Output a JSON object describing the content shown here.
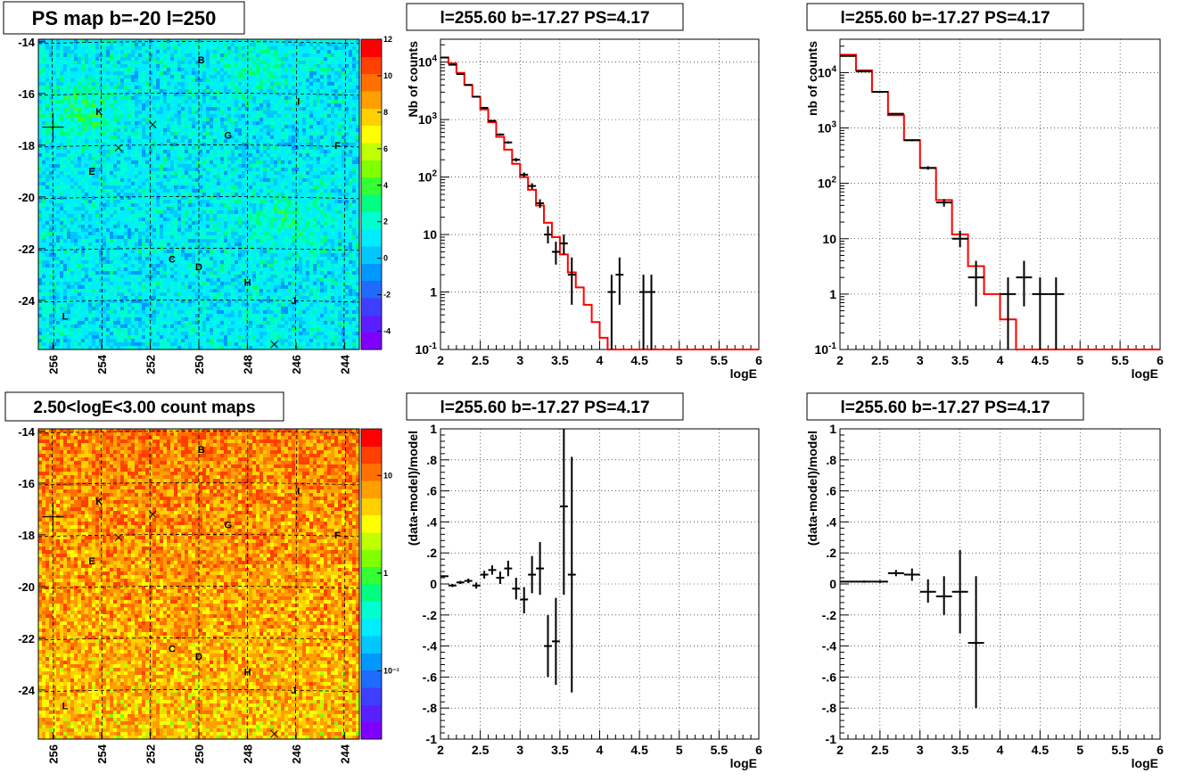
{
  "chart_data": [
    {
      "type": "heatmap",
      "title": "PS map b=-20 l=250",
      "xlim": [
        256.6,
        243.4
      ],
      "ylim": [
        -25.9,
        -13.9
      ],
      "x_ticks": [
        256,
        254,
        252,
        250,
        248,
        246,
        244
      ],
      "y_ticks": [
        -14,
        -16,
        -18,
        -20,
        -22,
        -24
      ],
      "grid": true,
      "colorbar": {
        "scale": "linear",
        "range": [
          -5,
          12
        ],
        "ticks": [
          -4,
          -2,
          0,
          2,
          4,
          6,
          8,
          10,
          12
        ]
      },
      "sources": [
        {
          "label": "B",
          "l": 249.9,
          "b": -14.7
        },
        {
          "label": "I",
          "l": 245.9,
          "b": -16.3
        },
        {
          "label": "K",
          "l": 254.1,
          "b": -16.7
        },
        {
          "label": "G",
          "l": 248.8,
          "b": -17.6
        },
        {
          "label": "F",
          "l": 244.3,
          "b": -18.0
        },
        {
          "label": "E",
          "l": 254.4,
          "b": -19.0
        },
        {
          "label": "C",
          "l": 251.1,
          "b": -22.4
        },
        {
          "label": "D",
          "l": 250.0,
          "b": -22.7
        },
        {
          "label": "H",
          "l": 248.0,
          "b": -23.3
        },
        {
          "label": "J",
          "l": 246.1,
          "b": -24.0
        },
        {
          "label": "L",
          "l": 255.5,
          "b": -24.6
        }
      ],
      "markers_x": [
        {
          "l": 251.9,
          "b": -17.2
        },
        {
          "l": 253.3,
          "b": -18.1
        },
        {
          "l": 246.9,
          "b": -25.7
        }
      ],
      "target": {
        "l": 256.0,
        "b": -17.3
      }
    },
    {
      "type": "line",
      "title": "l=255.60 b=-17.27 PS=4.17",
      "xlabel": "logE",
      "ylabel": "Nb of counts",
      "yscale": "log",
      "xlim": [
        2,
        6
      ],
      "ylim": [
        0.1,
        25000
      ],
      "x_ticks": [
        2,
        2.5,
        3,
        3.5,
        4,
        4.5,
        5,
        5.5,
        6
      ],
      "y_ticks": [
        "10^-1",
        "1",
        "10",
        "10^2",
        "10^3",
        "10^4"
      ],
      "grid": true,
      "model_step": {
        "edges": [
          2,
          2.1,
          2.2,
          2.3,
          2.4,
          2.5,
          2.6,
          2.7,
          2.8,
          2.9,
          3,
          3.1,
          3.2,
          3.3,
          3.4,
          3.5,
          3.6,
          3.7,
          3.8,
          3.9,
          4,
          4.1,
          4.2,
          6
        ],
        "values": [
          12000,
          9500,
          6500,
          4000,
          2500,
          1500,
          900,
          500,
          300,
          170,
          100,
          60,
          32,
          16,
          9,
          4.5,
          2.2,
          1.2,
          0.6,
          0.3,
          0.16,
          0.1,
          0.1
        ]
      },
      "data_points": [
        {
          "x": 2.05,
          "y": 12000,
          "xerr": 0.05,
          "ylo": 11890,
          "yhi": 12110
        },
        {
          "x": 2.15,
          "y": 9000,
          "xerr": 0.05,
          "ylo": 8905,
          "yhi": 9095
        },
        {
          "x": 2.25,
          "y": 6200,
          "xerr": 0.05,
          "ylo": 6121,
          "yhi": 6279
        },
        {
          "x": 2.35,
          "y": 4000,
          "xerr": 0.05,
          "ylo": 3937,
          "yhi": 4063
        },
        {
          "x": 2.45,
          "y": 2500,
          "xerr": 0.05,
          "ylo": 2450,
          "yhi": 2550
        },
        {
          "x": 2.55,
          "y": 1600,
          "xerr": 0.05,
          "ylo": 1560,
          "yhi": 1640
        },
        {
          "x": 2.65,
          "y": 950,
          "xerr": 0.05,
          "ylo": 919,
          "yhi": 981
        },
        {
          "x": 2.75,
          "y": 550,
          "xerr": 0.05,
          "ylo": 527,
          "yhi": 573
        },
        {
          "x": 2.85,
          "y": 400,
          "xerr": 0.05,
          "ylo": 380,
          "yhi": 420
        },
        {
          "x": 2.95,
          "y": 200,
          "xerr": 0.05,
          "ylo": 186,
          "yhi": 214
        },
        {
          "x": 3.05,
          "y": 110,
          "xerr": 0.05,
          "ylo": 100,
          "yhi": 120
        },
        {
          "x": 3.15,
          "y": 70,
          "xerr": 0.05,
          "ylo": 62,
          "yhi": 78
        },
        {
          "x": 3.25,
          "y": 35,
          "xerr": 0.05,
          "ylo": 29,
          "yhi": 41
        },
        {
          "x": 3.35,
          "y": 10,
          "xerr": 0.05,
          "ylo": 7,
          "yhi": 14
        },
        {
          "x": 3.45,
          "y": 5,
          "xerr": 0.05,
          "ylo": 3,
          "yhi": 7.5
        },
        {
          "x": 3.55,
          "y": 7,
          "xerr": 0.05,
          "ylo": 4.5,
          "yhi": 10
        },
        {
          "x": 3.65,
          "y": 2,
          "xerr": 0.05,
          "ylo": 0.6,
          "yhi": 4
        },
        {
          "x": 4.15,
          "y": 1,
          "xerr": 0.05,
          "ylo": 0.1,
          "yhi": 2
        },
        {
          "x": 4.25,
          "y": 2,
          "xerr": 0.05,
          "ylo": 0.6,
          "yhi": 4
        },
        {
          "x": 4.55,
          "y": 1,
          "xerr": 0.05,
          "ylo": 0.1,
          "yhi": 2
        },
        {
          "x": 4.65,
          "y": 1,
          "xerr": 0.05,
          "ylo": 0.1,
          "yhi": 2
        }
      ]
    },
    {
      "type": "line",
      "title": "l=255.60 b=-17.27 PS=4.17",
      "xlabel": "logE",
      "ylabel": "nb of counts",
      "yscale": "log",
      "xlim": [
        2,
        6
      ],
      "ylim": [
        0.1,
        40000
      ],
      "x_ticks": [
        2,
        2.5,
        3,
        3.5,
        4,
        4.5,
        5,
        5.5,
        6
      ],
      "y_ticks": [
        "10^-1",
        "1",
        "10",
        "10^2",
        "10^3",
        "10^4"
      ],
      "grid": true,
      "model_step": {
        "edges": [
          2,
          2.2,
          2.4,
          2.6,
          2.8,
          3,
          3.2,
          3.4,
          3.6,
          3.8,
          4,
          4.2,
          6
        ],
        "values": [
          21000,
          11000,
          4500,
          1700,
          600,
          190,
          50,
          12,
          3.2,
          1,
          0.35,
          0.1
        ]
      },
      "data_points": [
        {
          "x": 2.1,
          "y": 20000,
          "xerr": 0.1,
          "ylo": 19860,
          "yhi": 20140
        },
        {
          "x": 2.3,
          "y": 10500,
          "xerr": 0.1,
          "ylo": 10400,
          "yhi": 10600
        },
        {
          "x": 2.5,
          "y": 4500,
          "xerr": 0.1,
          "ylo": 4433,
          "yhi": 4567
        },
        {
          "x": 2.7,
          "y": 1800,
          "xerr": 0.1,
          "ylo": 1758,
          "yhi": 1842
        },
        {
          "x": 2.9,
          "y": 600,
          "xerr": 0.1,
          "ylo": 576,
          "yhi": 624
        },
        {
          "x": 3.1,
          "y": 190,
          "xerr": 0.1,
          "ylo": 176,
          "yhi": 204
        },
        {
          "x": 3.3,
          "y": 45,
          "xerr": 0.1,
          "ylo": 38,
          "yhi": 52
        },
        {
          "x": 3.5,
          "y": 10,
          "xerr": 0.1,
          "ylo": 7,
          "yhi": 14
        },
        {
          "x": 3.7,
          "y": 2,
          "xerr": 0.1,
          "ylo": 0.6,
          "yhi": 4
        },
        {
          "x": 4.1,
          "y": 1,
          "xerr": 0.1,
          "ylo": 0.1,
          "yhi": 2
        },
        {
          "x": 4.3,
          "y": 2,
          "xerr": 0.1,
          "ylo": 0.6,
          "yhi": 4
        },
        {
          "x": 4.5,
          "y": 1,
          "xerr": 0.1,
          "ylo": 0.1,
          "yhi": 2
        },
        {
          "x": 4.7,
          "y": 1,
          "xerr": 0.1,
          "ylo": 0.1,
          "yhi": 2
        }
      ]
    },
    {
      "type": "heatmap",
      "title": "2.50<logE<3.00 count maps",
      "xlim": [
        256.6,
        243.4
      ],
      "ylim": [
        -25.9,
        -13.9
      ],
      "x_ticks": [
        256,
        254,
        252,
        250,
        248,
        246,
        244
      ],
      "y_ticks": [
        -14,
        -16,
        -18,
        -20,
        -22,
        -24
      ],
      "grid": true,
      "colorbar": {
        "scale": "log",
        "range": [
          0.02,
          30
        ],
        "ticks": [
          {
            "value": 0.1,
            "label": "10⁻¹"
          },
          {
            "value": 1,
            "label": "1"
          },
          {
            "value": 10,
            "label": "10"
          }
        ]
      },
      "sources": [
        {
          "label": "B",
          "l": 249.9,
          "b": -14.7
        },
        {
          "label": "I",
          "l": 245.9,
          "b": -16.3
        },
        {
          "label": "K",
          "l": 254.1,
          "b": -16.7
        },
        {
          "label": "G",
          "l": 248.8,
          "b": -17.6
        },
        {
          "label": "F",
          "l": 244.3,
          "b": -18.0
        },
        {
          "label": "E",
          "l": 254.4,
          "b": -19.0
        },
        {
          "label": "C",
          "l": 251.1,
          "b": -22.4
        },
        {
          "label": "D",
          "l": 250.0,
          "b": -22.7
        },
        {
          "label": "H",
          "l": 248.0,
          "b": -23.3
        },
        {
          "label": "J",
          "l": 246.1,
          "b": -24.0
        },
        {
          "label": "L",
          "l": 255.5,
          "b": -24.6
        }
      ],
      "markers_x": [
        {
          "l": 251.9,
          "b": -17.2
        },
        {
          "l": 253.3,
          "b": -18.1
        },
        {
          "l": 246.9,
          "b": -25.7
        }
      ],
      "target": {
        "l": 256.0,
        "b": -17.3
      }
    },
    {
      "type": "scatter",
      "title": "l=255.60 b=-17.27 PS=4.17",
      "xlabel": "logE",
      "ylabel": "(data-model)/model",
      "xlim": [
        2,
        6
      ],
      "ylim": [
        -1,
        1
      ],
      "x_ticks": [
        2,
        2.5,
        3,
        3.5,
        4,
        4.5,
        5,
        5.5,
        6
      ],
      "y_ticks": [
        -1,
        -0.8,
        -0.6,
        -0.4,
        -0.2,
        0,
        0.2,
        0.4,
        0.6,
        0.8,
        1
      ],
      "grid": true,
      "data_points": [
        {
          "x": 2.05,
          "y": 0.05,
          "xerr": 0.05,
          "ylo": 0.045,
          "yhi": 0.055
        },
        {
          "x": 2.15,
          "y": -0.01,
          "xerr": 0.05,
          "ylo": -0.02,
          "yhi": 0.0
        },
        {
          "x": 2.25,
          "y": 0.01,
          "xerr": 0.05,
          "ylo": 0.0,
          "yhi": 0.02
        },
        {
          "x": 2.35,
          "y": 0.02,
          "xerr": 0.05,
          "ylo": 0.005,
          "yhi": 0.035
        },
        {
          "x": 2.45,
          "y": -0.01,
          "xerr": 0.05,
          "ylo": -0.03,
          "yhi": 0.01
        },
        {
          "x": 2.55,
          "y": 0.06,
          "xerr": 0.05,
          "ylo": 0.035,
          "yhi": 0.085
        },
        {
          "x": 2.65,
          "y": 0.09,
          "xerr": 0.05,
          "ylo": 0.06,
          "yhi": 0.12
        },
        {
          "x": 2.75,
          "y": 0.04,
          "xerr": 0.05,
          "ylo": 0.0,
          "yhi": 0.08
        },
        {
          "x": 2.85,
          "y": 0.1,
          "xerr": 0.05,
          "ylo": 0.05,
          "yhi": 0.15
        },
        {
          "x": 2.95,
          "y": -0.03,
          "xerr": 0.05,
          "ylo": -0.1,
          "yhi": 0.04
        },
        {
          "x": 3.05,
          "y": -0.1,
          "xerr": 0.05,
          "ylo": -0.19,
          "yhi": -0.02
        },
        {
          "x": 3.15,
          "y": 0.06,
          "xerr": 0.05,
          "ylo": -0.06,
          "yhi": 0.18
        },
        {
          "x": 3.25,
          "y": 0.1,
          "xerr": 0.05,
          "ylo": -0.07,
          "yhi": 0.27
        },
        {
          "x": 3.35,
          "y": -0.4,
          "xerr": 0.05,
          "ylo": -0.6,
          "yhi": -0.2
        },
        {
          "x": 3.45,
          "y": -0.37,
          "xerr": 0.05,
          "ylo": -0.65,
          "yhi": -0.09
        },
        {
          "x": 3.55,
          "y": 0.5,
          "xerr": 0.05,
          "ylo": -0.07,
          "yhi": 1.0
        },
        {
          "x": 3.65,
          "y": 0.06,
          "xerr": 0.05,
          "ylo": -0.7,
          "yhi": 0.82
        }
      ]
    },
    {
      "type": "scatter",
      "title": "l=255.60 b=-17.27 PS=4.17",
      "xlabel": "logE",
      "ylabel": "(data-model)/model",
      "xlim": [
        2,
        6
      ],
      "ylim": [
        -1,
        1
      ],
      "x_ticks": [
        2,
        2.5,
        3,
        3.5,
        4,
        4.5,
        5,
        5.5,
        6
      ],
      "y_ticks": [
        -1,
        -0.8,
        -0.6,
        -0.4,
        -0.2,
        0,
        0.2,
        0.4,
        0.6,
        0.8,
        1
      ],
      "grid": true,
      "data_points": [
        {
          "x": 2.1,
          "y": 0.015,
          "xerr": 0.1,
          "ylo": 0.01,
          "yhi": 0.02
        },
        {
          "x": 2.3,
          "y": 0.015,
          "xerr": 0.1,
          "ylo": 0.008,
          "yhi": 0.022
        },
        {
          "x": 2.5,
          "y": 0.015,
          "xerr": 0.1,
          "ylo": 0.005,
          "yhi": 0.025
        },
        {
          "x": 2.7,
          "y": 0.07,
          "xerr": 0.1,
          "ylo": 0.05,
          "yhi": 0.09
        },
        {
          "x": 2.9,
          "y": 0.06,
          "xerr": 0.1,
          "ylo": 0.02,
          "yhi": 0.1
        },
        {
          "x": 3.1,
          "y": -0.05,
          "xerr": 0.1,
          "ylo": -0.12,
          "yhi": 0.03
        },
        {
          "x": 3.3,
          "y": -0.08,
          "xerr": 0.1,
          "ylo": -0.2,
          "yhi": 0.05
        },
        {
          "x": 3.5,
          "y": -0.05,
          "xerr": 0.1,
          "ylo": -0.32,
          "yhi": 0.22
        },
        {
          "x": 3.7,
          "y": -0.38,
          "xerr": 0.1,
          "ylo": -0.8,
          "yhi": 0.05
        }
      ]
    }
  ]
}
